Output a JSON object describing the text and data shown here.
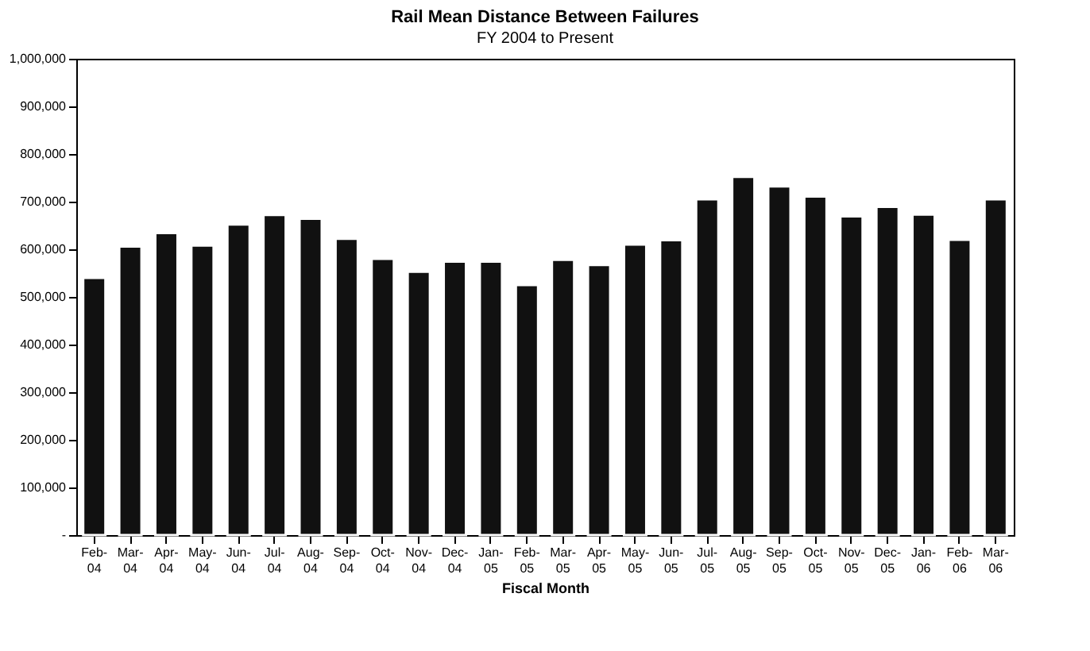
{
  "chart_data": {
    "type": "bar",
    "title": "Rail Mean Distance Between Failures",
    "subtitle": "FY 2004 to Present",
    "xlabel": "Fiscal Month",
    "categories": [
      "Feb-04",
      "Mar-04",
      "Apr-04",
      "May-04",
      "Jun-04",
      "Jul-04",
      "Aug-04",
      "Sep-04",
      "Oct-04",
      "Nov-04",
      "Dec-04",
      "Jan-05",
      "Feb-05",
      "Mar-05",
      "Apr-05",
      "May-05",
      "Jun-05",
      "Jul-05",
      "Aug-05",
      "Sep-05",
      "Oct-05",
      "Nov-05",
      "Dec-05",
      "Jan-06",
      "Feb-06",
      "Mar-06"
    ],
    "values": [
      540000,
      606000,
      634000,
      608000,
      652000,
      672000,
      664000,
      622000,
      580000,
      553000,
      574000,
      574000,
      525000,
      578000,
      567000,
      610000,
      619000,
      705000,
      752000,
      732000,
      711000,
      669000,
      689000,
      673000,
      620000,
      705000
    ],
    "color": "#111111",
    "ylim": [
      0,
      1000000
    ],
    "yticks": [
      {
        "value": 0,
        "label": "-"
      },
      {
        "value": 100000,
        "label": "100,000"
      },
      {
        "value": 200000,
        "label": "200,000"
      },
      {
        "value": 300000,
        "label": "300,000"
      },
      {
        "value": 400000,
        "label": "400,000"
      },
      {
        "value": 500000,
        "label": "500,000"
      },
      {
        "value": 600000,
        "label": "600,000"
      },
      {
        "value": 700000,
        "label": "700,000"
      },
      {
        "value": 800000,
        "label": "800,000"
      },
      {
        "value": 900000,
        "label": "900,000"
      },
      {
        "value": 1000000,
        "label": "1,000,000"
      }
    ],
    "grid": false
  }
}
